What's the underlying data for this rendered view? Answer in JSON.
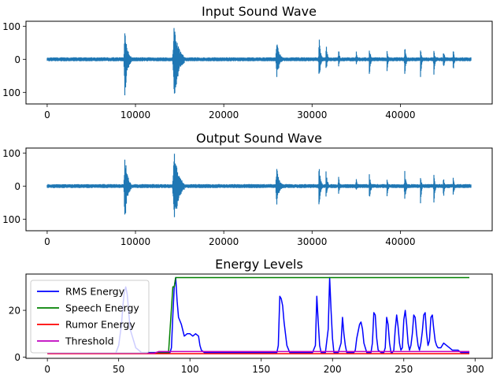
{
  "chart_data": [
    {
      "type": "line",
      "title": "Input Sound Wave",
      "xlabel": "",
      "ylabel": "",
      "xlim": [
        -2400,
        50400
      ],
      "ylim": [
        -135,
        115
      ],
      "xticks": [
        0,
        10000,
        20000,
        30000,
        40000
      ],
      "xtick_labels": [
        "0",
        "10000",
        "20000",
        "30000",
        "40000"
      ],
      "yticks": [
        100,
        0,
        -100
      ],
      "ytick_labels": [
        "100",
        "0",
        "100"
      ],
      "grid": false,
      "series": [
        {
          "color": "#1f77b4",
          "style": "dense-waveform",
          "samples": 48000,
          "noise_amplitude": 6,
          "bursts": [
            {
              "x": 8800,
              "width": 320,
              "amplitude_pos": 100,
              "amplitude_neg": -112
            },
            {
              "x": 14400,
              "width": 520,
              "amplitude_pos": 110,
              "amplitude_neg": -125
            },
            {
              "x": 26000,
              "width": 320,
              "amplitude_pos": 60,
              "amplitude_neg": -60
            },
            {
              "x": 30800,
              "width": 180,
              "amplitude_pos": 70,
              "amplitude_neg": -70
            },
            {
              "x": 31600,
              "width": 150,
              "amplitude_pos": 55,
              "amplitude_neg": -40
            },
            {
              "x": 33000,
              "width": 120,
              "amplitude_pos": 40,
              "amplitude_neg": -30
            },
            {
              "x": 35000,
              "width": 120,
              "amplitude_pos": 30,
              "amplitude_neg": -20
            },
            {
              "x": 36500,
              "width": 150,
              "amplitude_pos": 40,
              "amplitude_neg": -55
            },
            {
              "x": 38500,
              "width": 120,
              "amplitude_pos": 30,
              "amplitude_neg": -45
            },
            {
              "x": 40500,
              "width": 140,
              "amplitude_pos": 50,
              "amplitude_neg": -60
            },
            {
              "x": 42300,
              "width": 120,
              "amplitude_pos": 40,
              "amplitude_neg": -60
            },
            {
              "x": 43800,
              "width": 120,
              "amplitude_pos": 40,
              "amplitude_neg": -65
            },
            {
              "x": 44900,
              "width": 120,
              "amplitude_pos": 35,
              "amplitude_neg": -40
            },
            {
              "x": 46000,
              "width": 120,
              "amplitude_pos": 35,
              "amplitude_neg": -40
            }
          ]
        }
      ]
    },
    {
      "type": "line",
      "title": "Output Sound Wave",
      "xlabel": "",
      "ylabel": "",
      "xlim": [
        -2400,
        50400
      ],
      "ylim": [
        -135,
        115
      ],
      "xticks": [
        0,
        10000,
        20000,
        30000,
        40000
      ],
      "xtick_labels": [
        "0",
        "10000",
        "20000",
        "30000",
        "40000"
      ],
      "yticks": [
        100,
        0,
        -100
      ],
      "ytick_labels": [
        "100",
        "0",
        "100"
      ],
      "grid": false,
      "series": [
        {
          "color": "#1f77b4",
          "style": "dense-waveform",
          "samples": 48000,
          "noise_amplitude": 6,
          "bursts": [
            {
              "x": 8800,
              "width": 320,
              "amplitude_pos": 100,
              "amplitude_neg": -112
            },
            {
              "x": 14400,
              "width": 520,
              "amplitude_pos": 110,
              "amplitude_neg": -125
            },
            {
              "x": 26000,
              "width": 320,
              "amplitude_pos": 60,
              "amplitude_neg": -60
            },
            {
              "x": 30800,
              "width": 180,
              "amplitude_pos": 70,
              "amplitude_neg": -70
            },
            {
              "x": 31600,
              "width": 150,
              "amplitude_pos": 55,
              "amplitude_neg": -40
            },
            {
              "x": 33000,
              "width": 120,
              "amplitude_pos": 40,
              "amplitude_neg": -30
            },
            {
              "x": 35000,
              "width": 120,
              "amplitude_pos": 30,
              "amplitude_neg": -20
            },
            {
              "x": 36500,
              "width": 150,
              "amplitude_pos": 40,
              "amplitude_neg": -55
            },
            {
              "x": 38500,
              "width": 120,
              "amplitude_pos": 30,
              "amplitude_neg": -45
            },
            {
              "x": 40500,
              "width": 140,
              "amplitude_pos": 50,
              "amplitude_neg": -60
            },
            {
              "x": 42300,
              "width": 120,
              "amplitude_pos": 40,
              "amplitude_neg": -60
            },
            {
              "x": 43800,
              "width": 120,
              "amplitude_pos": 40,
              "amplitude_neg": -65
            },
            {
              "x": 44900,
              "width": 120,
              "amplitude_pos": 35,
              "amplitude_neg": -40
            },
            {
              "x": 46000,
              "width": 120,
              "amplitude_pos": 35,
              "amplitude_neg": -40
            }
          ]
        }
      ]
    },
    {
      "type": "line",
      "title": "Energy Levels",
      "xlabel": "",
      "ylabel": "",
      "xlim": [
        -15,
        312
      ],
      "ylim": [
        -0.5,
        35.5
      ],
      "xticks": [
        0,
        50,
        100,
        150,
        200,
        250,
        300
      ],
      "xtick_labels": [
        "0",
        "50",
        "100",
        "150",
        "200",
        "250",
        "300"
      ],
      "yticks": [
        0,
        20
      ],
      "ytick_labels": [
        "0",
        "20"
      ],
      "grid": false,
      "legend": "upper-left",
      "series": [
        {
          "name": "RMS Energy",
          "color": "#0000ff",
          "x": [
            0,
            48,
            50,
            52,
            53,
            54,
            55,
            56,
            57,
            58,
            60,
            62,
            64,
            66,
            70,
            80,
            86,
            87,
            88,
            89,
            90,
            91,
            92,
            94,
            96,
            98,
            100,
            102,
            104,
            106,
            107,
            108,
            110,
            140,
            160,
            161,
            162,
            163,
            164,
            165,
            166,
            167,
            168,
            170,
            172,
            180,
            186,
            188,
            189,
            190,
            191,
            192,
            193,
            195,
            197,
            198,
            199,
            200,
            201,
            202,
            204,
            206,
            207,
            208,
            209,
            210,
            212,
            213,
            214,
            215,
            216,
            217,
            218,
            219,
            220,
            221,
            222,
            224,
            226,
            227,
            228,
            229,
            230,
            231,
            232,
            234,
            236,
            237,
            238,
            239,
            240,
            241,
            242,
            243,
            244,
            245,
            246,
            247,
            248,
            249,
            250,
            251,
            252,
            253,
            254,
            255,
            256,
            257,
            258,
            259,
            260,
            261,
            262,
            263,
            264,
            265,
            266,
            267,
            268,
            269,
            270,
            271,
            272,
            273,
            274,
            276,
            278,
            280,
            282,
            284,
            286,
            288,
            290,
            292,
            294,
            296
          ],
          "y": [
            1.8,
            1.8,
            5,
            14,
            22,
            28,
            30,
            27,
            20,
            12,
            8,
            4,
            3,
            2,
            2,
            2,
            2,
            4,
            18,
            30,
            34,
            24,
            17,
            14,
            9,
            10,
            10,
            9,
            10,
            9,
            5,
            3,
            2,
            2,
            2,
            2,
            5,
            26,
            25,
            22,
            15,
            10,
            5,
            2,
            2,
            2,
            2,
            5,
            26,
            15,
            5,
            2,
            2,
            2,
            12,
            34,
            20,
            8,
            2,
            2,
            2,
            6,
            17,
            10,
            5,
            2,
            2,
            2,
            2,
            2,
            3,
            8,
            11,
            14,
            15,
            12,
            6,
            2,
            2,
            2,
            6,
            19,
            18,
            8,
            3,
            2,
            2,
            4,
            17,
            14,
            6,
            2,
            2,
            3,
            12,
            18,
            13,
            6,
            3,
            4,
            16,
            20,
            14,
            6,
            3,
            5,
            10,
            18,
            17,
            10,
            5,
            3,
            6,
            11,
            18,
            19,
            10,
            5,
            7,
            17,
            18,
            12,
            7,
            5,
            4,
            4,
            6,
            5,
            4,
            3,
            3,
            3,
            2,
            2,
            2,
            2
          ]
        },
        {
          "name": "Speech Energy",
          "color": "#008000",
          "x": [
            0,
            85,
            88,
            89,
            90,
            296
          ],
          "y": [
            1.8,
            1.8,
            30,
            30,
            34,
            34
          ]
        },
        {
          "name": "Rumor Energy",
          "color": "#ff0000",
          "x": [
            0,
            296
          ],
          "y": [
            1.5,
            1.5
          ]
        },
        {
          "name": "Threshold",
          "color": "#bf00bf",
          "x": [
            0,
            75,
            78,
            296
          ],
          "y": [
            1.7,
            1.7,
            2.4,
            2.4
          ]
        }
      ]
    }
  ]
}
